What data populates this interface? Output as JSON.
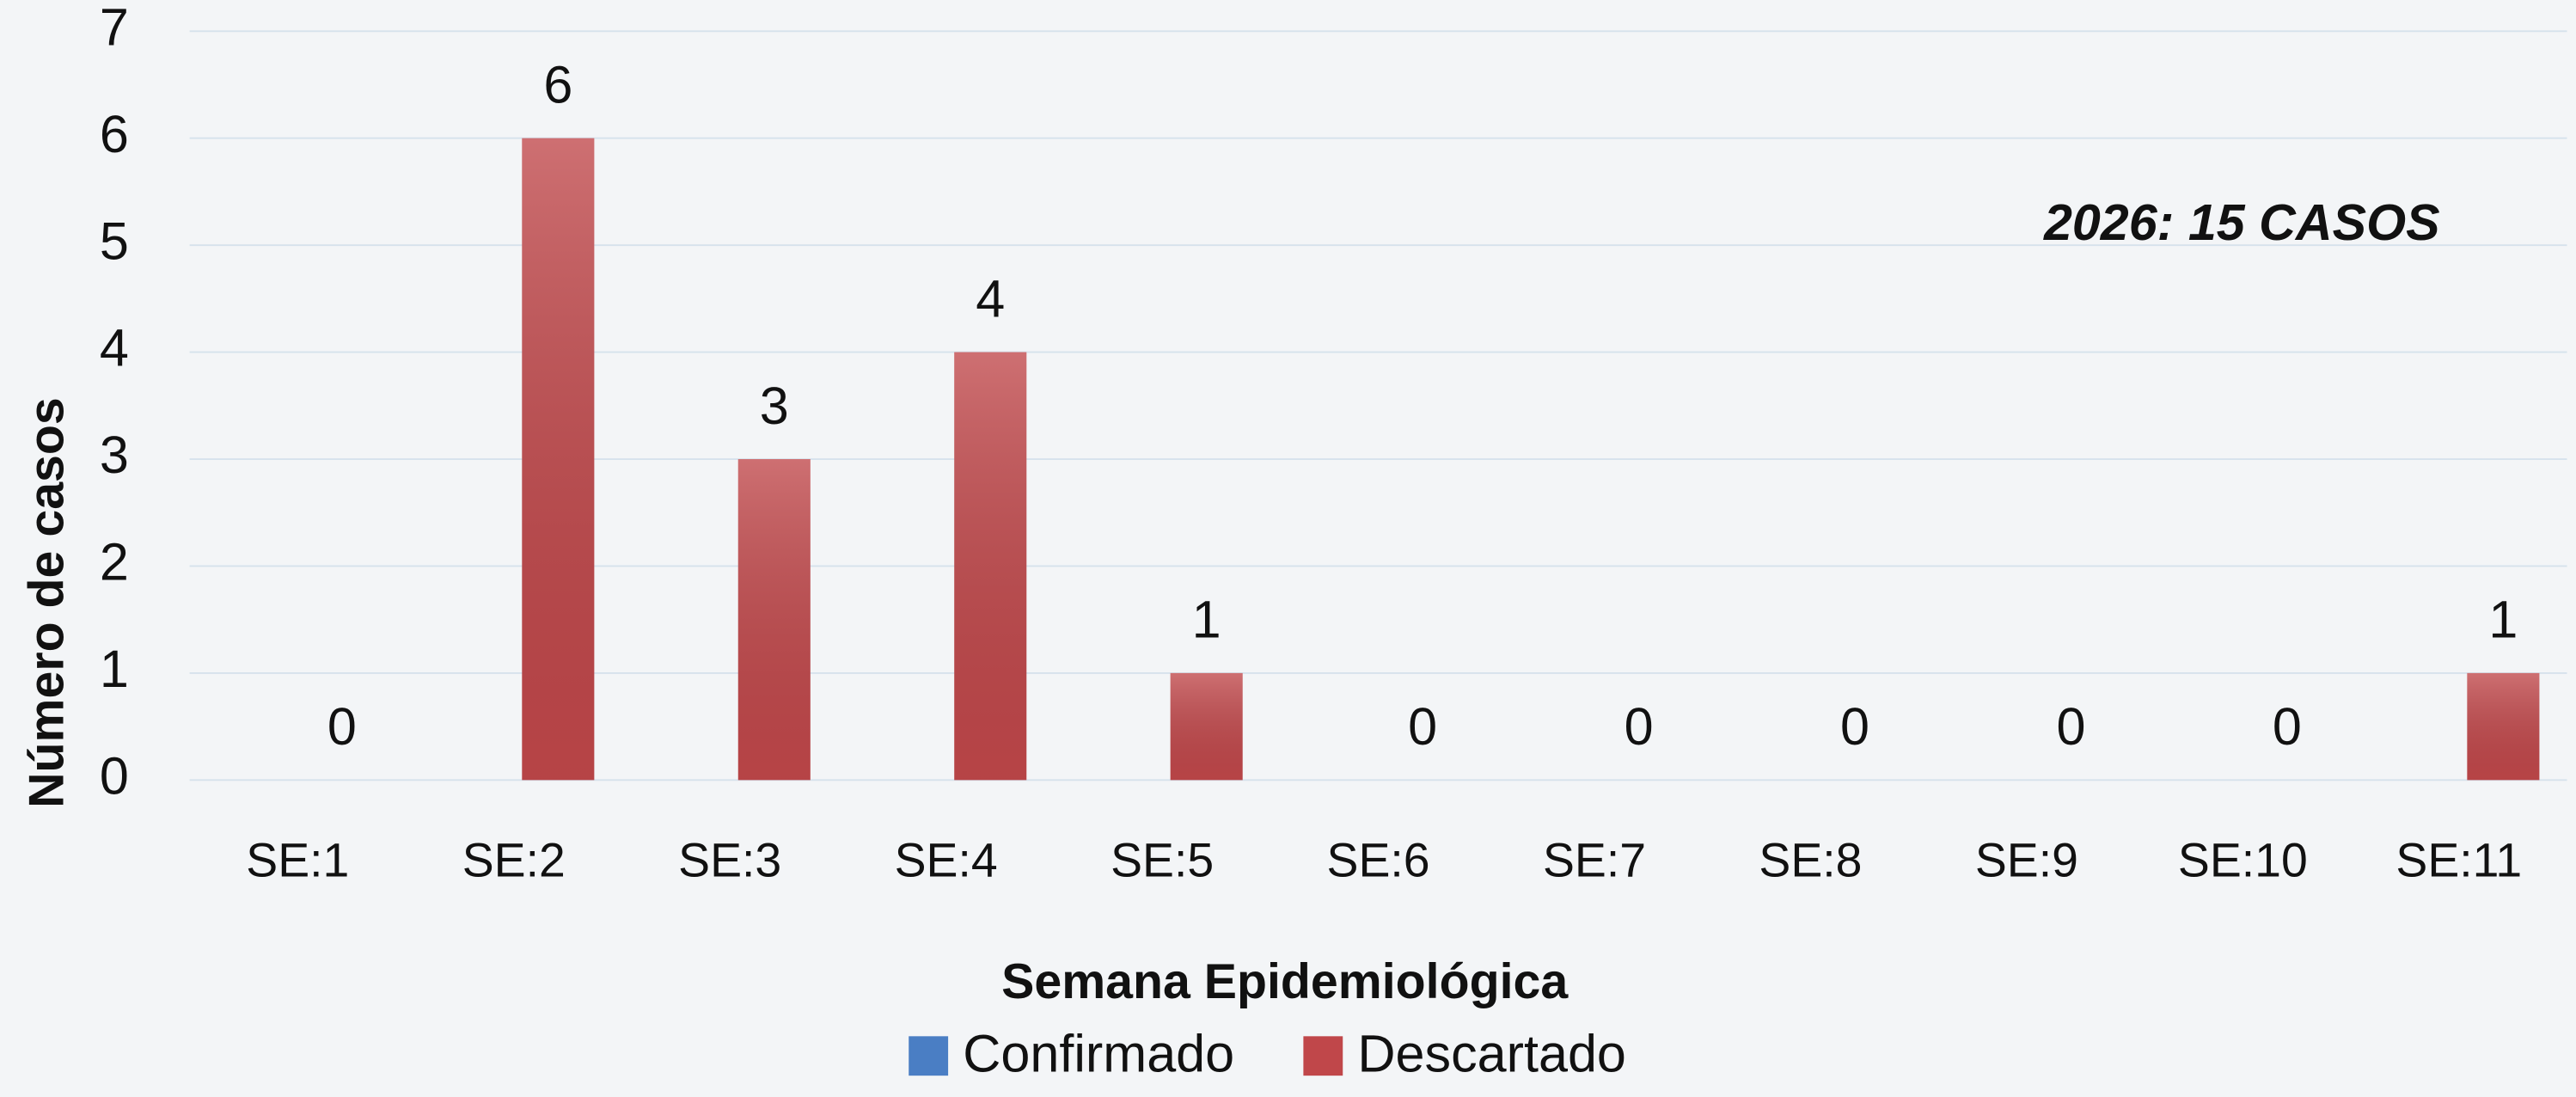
{
  "chart_data": {
    "type": "bar",
    "categories": [
      "SE:1",
      "SE:2",
      "SE:3",
      "SE:4",
      "SE:5",
      "SE:6",
      "SE:7",
      "SE:8",
      "SE:9",
      "SE:10",
      "SE:11"
    ],
    "series": [
      {
        "name": "Confirmado",
        "color": "#4a7ec4",
        "values": [
          0,
          0,
          0,
          0,
          0,
          0,
          0,
          0,
          0,
          0,
          0
        ]
      },
      {
        "name": "Descartado",
        "color": "#c0474a",
        "values": [
          0,
          6,
          3,
          4,
          1,
          0,
          0,
          0,
          0,
          0,
          1
        ]
      }
    ],
    "labeled_series": [
      1
    ],
    "ylim": [
      0,
      7
    ],
    "yticks": [
      0,
      1,
      2,
      3,
      4,
      5,
      6,
      7
    ],
    "grid": true,
    "x_label": "Semana Epidemiológica",
    "y_label": "Número de casos",
    "annotation": "2026: 15 CASOS",
    "legend": "bottom"
  }
}
